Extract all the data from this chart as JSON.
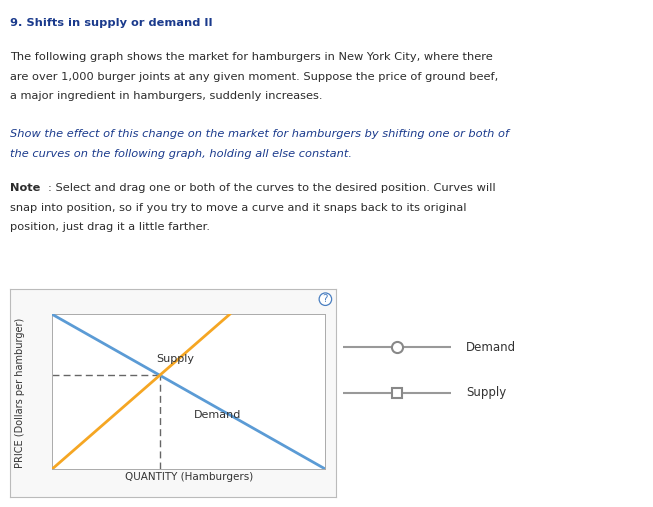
{
  "title": "9. Shifts in supply or demand II",
  "supply_color": "#F5A623",
  "demand_color": "#5B9BD5",
  "dashed_color": "#666666",
  "background_color": "#ffffff",
  "panel_bg": "#ffffff",
  "border_color": "#cccccc",
  "text_color": "#2c2c2c",
  "italic_color": "#1a3a8c",
  "title_color": "#1a3a8c",
  "xlabel": "QUANTITY (Hamburgers)",
  "ylabel": "PRICE (Dollars per hamburger)",
  "supply_label": "Supply",
  "demand_label": "Demand",
  "legend_demand_label": "Demand",
  "legend_supply_label": "Supply",
  "para1_line1": "The following graph shows the market for hamburgers in New York City, where there",
  "para1_line2": "are over 1,000 burger joints at any given moment. Suppose the price of ground beef,",
  "para1_line3": "a major ingredient in hamburgers, suddenly increases.",
  "para2_line1": "Show the effect of this change on the market for hamburgers by shifting one or both of",
  "para2_line2": "the curves on the following graph, holding all else constant.",
  "note_line1": ": Select and drag one or both of the curves to the desired position. Curves will",
  "note_line2": "snap into position, so if you try to move a curve and it snaps back to its original",
  "note_line3": "position, just drag it a little farther."
}
